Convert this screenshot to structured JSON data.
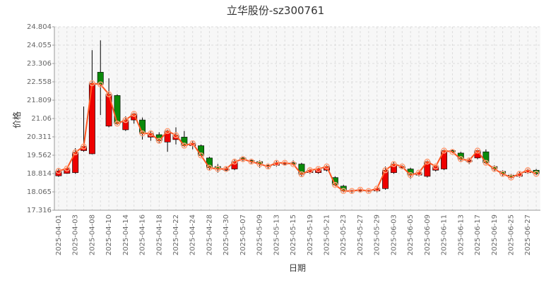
{
  "chart_data": {
    "type": "candlestick",
    "title": "立华股份-sz300761",
    "x_label": "日期",
    "y_label": "价格",
    "categories": [
      "2025-04-01",
      null,
      "2025-04-03",
      null,
      "2025-04-08",
      null,
      "2025-04-10",
      null,
      "2025-04-14",
      null,
      "2025-04-16",
      null,
      "2025-04-18",
      null,
      "2025-04-22",
      null,
      "2025-04-24",
      null,
      "2025-04-28",
      null,
      "2025-04-30",
      null,
      "2025-05-07",
      null,
      "2025-05-09",
      null,
      "2025-05-13",
      null,
      "2025-05-15",
      null,
      "2025-05-19",
      null,
      "2025-05-21",
      null,
      "2025-05-23",
      null,
      "2025-05-27",
      null,
      "2025-05-29",
      null,
      "2025-06-03",
      null,
      "2025-06-05",
      null,
      "2025-06-09",
      null,
      "2025-06-11",
      null,
      "2025-06-13",
      null,
      "2025-06-17",
      null,
      "2025-06-19",
      null,
      "2025-06-25",
      null,
      "2025-06-27",
      null
    ],
    "open": [
      18.72,
      18.82,
      18.85,
      19.75,
      19.62,
      22.95,
      20.75,
      22.0,
      20.6,
      21.0,
      21.0,
      20.3,
      20.4,
      20.1,
      20.2,
      20.3,
      19.95,
      19.95,
      19.45,
      19.1,
      18.95,
      19.0,
      19.45,
      19.35,
      19.3,
      19.15,
      19.15,
      19.2,
      19.25,
      19.2,
      18.85,
      18.85,
      18.95,
      18.65,
      18.3,
      18.12,
      18.1,
      18.12,
      18.1,
      18.2,
      18.85,
      19.05,
      19.0,
      18.75,
      18.7,
      18.95,
      19.0,
      19.75,
      19.65,
      19.3,
      19.45,
      19.7,
      19.1,
      18.9,
      18.75,
      18.7,
      18.85,
      18.95
    ],
    "high": [
      19.0,
      19.05,
      19.85,
      21.55,
      23.85,
      24.25,
      22.7,
      22.05,
      21.15,
      21.3,
      21.1,
      20.55,
      20.5,
      20.6,
      20.7,
      20.55,
      20.15,
      20.0,
      19.5,
      19.2,
      19.1,
      19.4,
      19.5,
      19.4,
      19.35,
      19.2,
      19.35,
      19.3,
      19.35,
      19.25,
      19.0,
      19.05,
      19.15,
      18.7,
      18.35,
      18.15,
      18.2,
      18.15,
      18.25,
      19.1,
      19.3,
      19.15,
      19.05,
      18.9,
      19.35,
      19.15,
      19.8,
      19.8,
      19.7,
      19.45,
      19.8,
      19.8,
      19.15,
      18.95,
      18.8,
      18.9,
      19.0,
      19.0
    ],
    "low": [
      18.68,
      18.8,
      18.8,
      19.7,
      19.6,
      21.2,
      20.7,
      20.8,
      20.55,
      20.85,
      20.2,
      20.15,
      20.05,
      19.7,
      20.0,
      19.9,
      19.8,
      19.5,
      18.95,
      18.85,
      18.9,
      18.95,
      19.3,
      19.2,
      19.05,
      19.0,
      19.1,
      19.15,
      19.15,
      18.7,
      18.8,
      18.8,
      18.9,
      18.3,
      18.05,
      18.0,
      18.05,
      18.05,
      18.05,
      18.15,
      18.8,
      19.0,
      18.6,
      18.7,
      18.65,
      18.9,
      18.95,
      19.65,
      19.3,
      19.2,
      19.4,
      19.2,
      18.9,
      18.7,
      18.6,
      18.65,
      18.8,
      18.75
    ],
    "close": [
      18.92,
      19.02,
      19.68,
      19.92,
      22.5,
      22.45,
      22.05,
      20.85,
      21.0,
      21.25,
      20.45,
      20.45,
      20.15,
      20.55,
      20.38,
      19.95,
      20.05,
      19.55,
      19.05,
      19.0,
      19.0,
      19.3,
      19.4,
      19.3,
      19.2,
      19.1,
      19.25,
      19.25,
      19.2,
      18.78,
      18.95,
      19.0,
      19.1,
      18.35,
      18.1,
      18.1,
      18.15,
      18.1,
      18.2,
      18.95,
      19.2,
      19.1,
      18.75,
      18.85,
      19.3,
      19.1,
      19.75,
      19.7,
      19.4,
      19.35,
      19.75,
      19.25,
      19.0,
      18.8,
      18.65,
      18.8,
      18.95,
      18.8
    ],
    "up_color": "#ee0000",
    "down_color": "#0a8a0a",
    "line_color": "#ff5722",
    "marker_color": "#ffa07a",
    "ylim": [
      17.316,
      24.804
    ],
    "yticks": [
      17.316,
      18.065,
      18.814,
      19.562,
      20.311,
      21.06,
      21.809,
      22.558,
      23.306,
      24.055,
      24.804
    ],
    "grid": true
  }
}
